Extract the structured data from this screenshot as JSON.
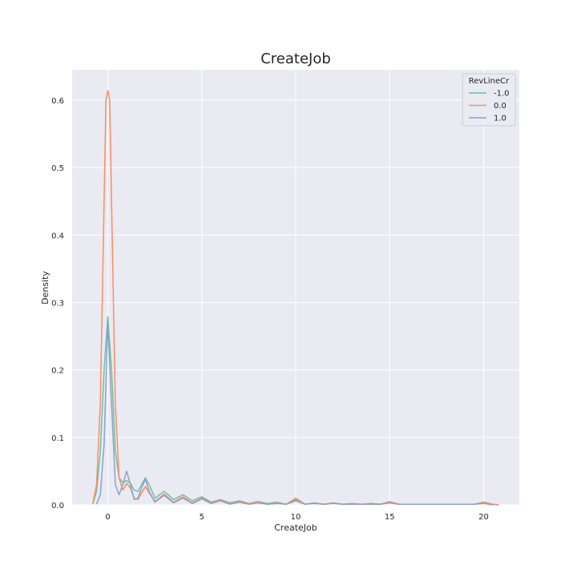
{
  "chart_data": {
    "type": "line",
    "title": "CreateJob",
    "xlabel": "CreateJob",
    "ylabel": "Density",
    "xlim": [
      -1.9,
      21.9
    ],
    "ylim": [
      0,
      0.645
    ],
    "x_ticks": [
      0,
      5,
      10,
      15,
      20
    ],
    "y_ticks": [
      0.0,
      0.1,
      0.2,
      0.3,
      0.4,
      0.5,
      0.6
    ],
    "x_tick_labels": [
      "0",
      "5",
      "10",
      "15",
      "20"
    ],
    "y_tick_labels": [
      "0.0",
      "0.1",
      "0.2",
      "0.3",
      "0.4",
      "0.5",
      "0.6"
    ],
    "grid": true,
    "legend_position": "top-right",
    "legend_title": "RevLineCr",
    "colors": {
      "plot_background": "#eaeaf2",
      "grid": "#ffffff",
      "axis_text": "#262626"
    },
    "series": [
      {
        "name": "-1.0",
        "color": "#66c2a5",
        "x": [
          -0.8,
          -0.6,
          -0.4,
          -0.2,
          0,
          0.2,
          0.4,
          0.6,
          0.8,
          1,
          1.2,
          1.4,
          1.6,
          1.8,
          2,
          2.2,
          2.5,
          3,
          3.5,
          4,
          4.5,
          5,
          5.5,
          6,
          6.5,
          7,
          7.5,
          8,
          8.5,
          9,
          9.5,
          10,
          10.5,
          11,
          11.5,
          12,
          12.5,
          13,
          13.5,
          14,
          14.5,
          15,
          15.5,
          16,
          16.5,
          17,
          17.5,
          18,
          18.5,
          19,
          19.5,
          20,
          20.5,
          20.8
        ],
        "y": [
          0.001,
          0.02,
          0.08,
          0.2,
          0.279,
          0.2,
          0.08,
          0.04,
          0.033,
          0.036,
          0.032,
          0.022,
          0.02,
          0.03,
          0.04,
          0.03,
          0.01,
          0.02,
          0.008,
          0.015,
          0.006,
          0.012,
          0.004,
          0.008,
          0.003,
          0.006,
          0.002,
          0.005,
          0.002,
          0.004,
          0.001,
          0.008,
          0.001,
          0.003,
          0.001,
          0.003,
          0.001,
          0.002,
          0.001,
          0.002,
          0.001,
          0.004,
          0.001,
          0.001,
          0.001,
          0.001,
          0.001,
          0.001,
          0.001,
          0.001,
          0.001,
          0.003,
          0.001,
          0.0
        ]
      },
      {
        "name": "0.0",
        "color": "#fc8d62",
        "x": [
          -0.8,
          -0.6,
          -0.4,
          -0.2,
          -0.1,
          0,
          0.1,
          0.2,
          0.4,
          0.6,
          0.8,
          1,
          1.2,
          1.4,
          1.6,
          1.8,
          2,
          2.2,
          2.5,
          3,
          3.5,
          4,
          4.5,
          5,
          5.5,
          6,
          6.5,
          7,
          7.5,
          8,
          8.5,
          9,
          9.5,
          10,
          10.5,
          11,
          11.5,
          12,
          12.5,
          13,
          13.5,
          14,
          14.5,
          15,
          15.5,
          16,
          16.5,
          17,
          17.5,
          18,
          18.5,
          19,
          19.5,
          20,
          20.5,
          20.8
        ],
        "y": [
          0.002,
          0.03,
          0.15,
          0.45,
          0.6,
          0.614,
          0.6,
          0.45,
          0.15,
          0.04,
          0.022,
          0.032,
          0.025,
          0.01,
          0.008,
          0.018,
          0.027,
          0.018,
          0.005,
          0.016,
          0.004,
          0.012,
          0.003,
          0.01,
          0.003,
          0.007,
          0.002,
          0.005,
          0.002,
          0.004,
          0.001,
          0.003,
          0.001,
          0.01,
          0.001,
          0.002,
          0.001,
          0.003,
          0.001,
          0.002,
          0.001,
          0.002,
          0.001,
          0.005,
          0.001,
          0.001,
          0.001,
          0.001,
          0.001,
          0.001,
          0.001,
          0.001,
          0.001,
          0.004,
          0.001,
          0.0
        ]
      },
      {
        "name": "1.0",
        "color": "#8da0cb",
        "x": [
          -0.6,
          -0.4,
          -0.2,
          0,
          0.2,
          0.4,
          0.6,
          0.8,
          1,
          1.2,
          1.4,
          1.6,
          1.8,
          2,
          2.2,
          2.5,
          3,
          3.5,
          4,
          4.5,
          5,
          5.5,
          6,
          6.5,
          7,
          7.5,
          8,
          8.5,
          9,
          9.5,
          10,
          10.5,
          11,
          11.5,
          12,
          12.5,
          13,
          13.5,
          14,
          14.5,
          15,
          15.5,
          16,
          16.5,
          17,
          17.5,
          18,
          18.5,
          19,
          19.5,
          20,
          20.5
        ],
        "y": [
          0.001,
          0.015,
          0.09,
          0.27,
          0.15,
          0.03,
          0.015,
          0.03,
          0.05,
          0.03,
          0.008,
          0.01,
          0.025,
          0.038,
          0.02,
          0.004,
          0.014,
          0.003,
          0.01,
          0.002,
          0.009,
          0.002,
          0.006,
          0.001,
          0.004,
          0.001,
          0.003,
          0.001,
          0.002,
          0.001,
          0.006,
          0.001,
          0.002,
          0.001,
          0.002,
          0.001,
          0.001,
          0.001,
          0.001,
          0.001,
          0.003,
          0.001,
          0.001,
          0.001,
          0.001,
          0.001,
          0.001,
          0.001,
          0.001,
          0.001,
          0.002,
          0.0
        ]
      }
    ]
  }
}
